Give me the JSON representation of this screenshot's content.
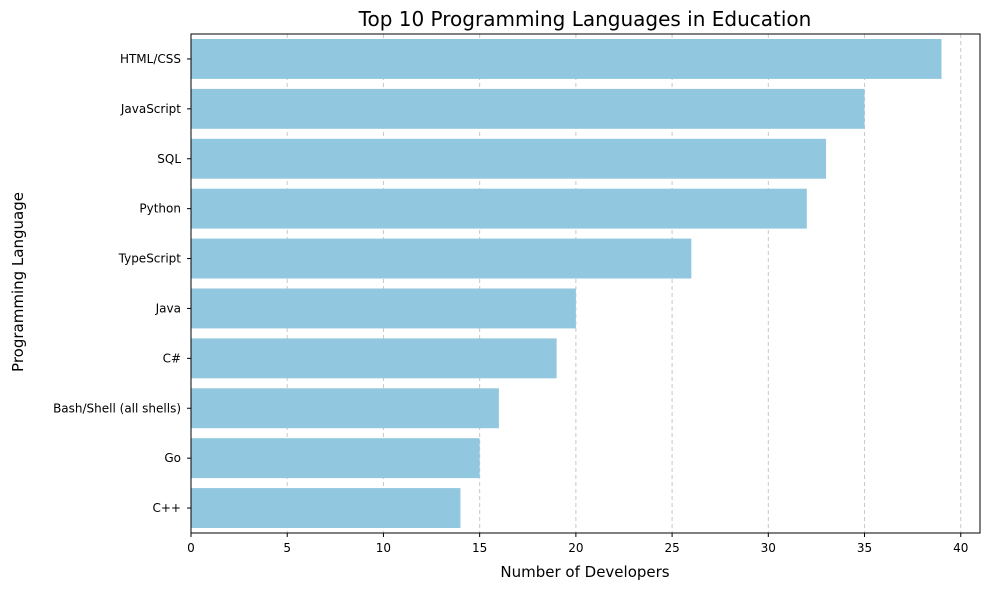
{
  "chart_data": {
    "type": "bar",
    "orientation": "horizontal",
    "title": "Top 10 Programming Languages in Education",
    "xlabel": "Number of Developers",
    "ylabel": "Programming Language",
    "categories": [
      "HTML/CSS",
      "JavaScript",
      "SQL",
      "Python",
      "TypeScript",
      "Java",
      "C#",
      "Bash/Shell (all shells)",
      "Go",
      "C++"
    ],
    "values": [
      39,
      35,
      33,
      32,
      26,
      20,
      19,
      16,
      15,
      14
    ],
    "xlim": [
      0,
      41
    ],
    "xticks": [
      0,
      5,
      10,
      15,
      20,
      25,
      30,
      35,
      40
    ],
    "grid": {
      "x": true,
      "y": false,
      "style": "dashed"
    },
    "bar_color": "#92C8DF",
    "grid_color": "#C8C8C8",
    "axis_color": "#000000"
  }
}
